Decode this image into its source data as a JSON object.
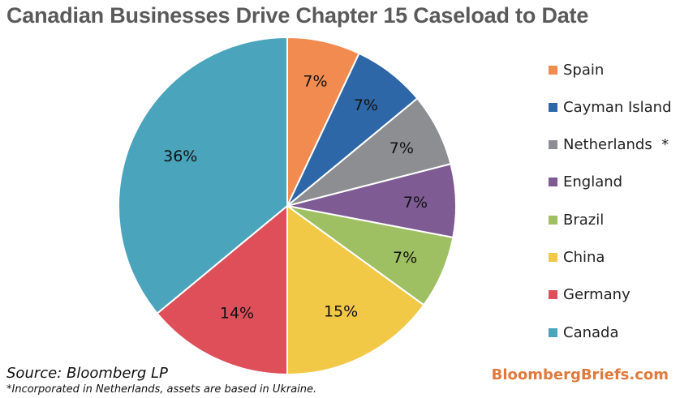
{
  "chart_data": {
    "type": "pie",
    "title": "Canadian Businesses Drive Chapter 15 Caseload to Date",
    "slices": [
      {
        "label": "Spain",
        "value": 7,
        "display": "7%",
        "color": "#f28b50"
      },
      {
        "label": "Cayman Island",
        "value": 7,
        "display": "7%",
        "color": "#2e67a7"
      },
      {
        "label": "Netherlands  *",
        "value": 7,
        "display": "7%",
        "color": "#8c8e91"
      },
      {
        "label": "England",
        "value": 7,
        "display": "7%",
        "color": "#7f5b93"
      },
      {
        "label": "Brazil",
        "value": 7,
        "display": "7%",
        "color": "#9ebf62"
      },
      {
        "label": "China",
        "value": 15,
        "display": "15%",
        "color": "#f2c847"
      },
      {
        "label": "Germany",
        "value": 14,
        "display": "14%",
        "color": "#de4f5a"
      },
      {
        "label": "Canada",
        "value": 36,
        "display": "36%",
        "color": "#4aa4bc"
      }
    ],
    "legend_position": "right"
  },
  "source": "Source: Bloomberg LP",
  "footnote": "*Incorporated in Netherlands, assets are based in Ukraine.",
  "brand": "BloombergBriefs.com"
}
